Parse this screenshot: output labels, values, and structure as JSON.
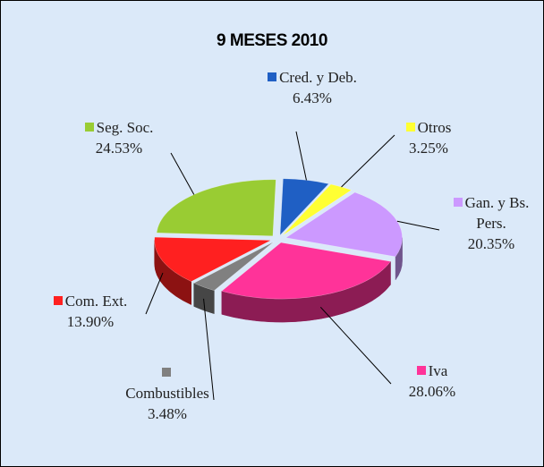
{
  "chart_data": {
    "type": "pie",
    "title": "9 MESES 2010",
    "categories": [
      "Cred. y Deb.",
      "Otros",
      "Gan. y Bs. Pers.",
      "Iva",
      "Combustibles",
      "Com. Ext.",
      "Seg. Soc."
    ],
    "values": [
      6.43,
      3.25,
      20.35,
      28.06,
      3.48,
      13.9,
      24.53
    ],
    "value_labels": [
      "6.43%",
      "3.25%",
      "20.35%",
      "28.06%",
      "3.48%",
      "13.90%",
      "24.53%"
    ],
    "colors": [
      "#1f5fc4",
      "#ffff33",
      "#cc99ff",
      "#ff3399",
      "#808080",
      "#ff2020",
      "#99cc33"
    ]
  }
}
